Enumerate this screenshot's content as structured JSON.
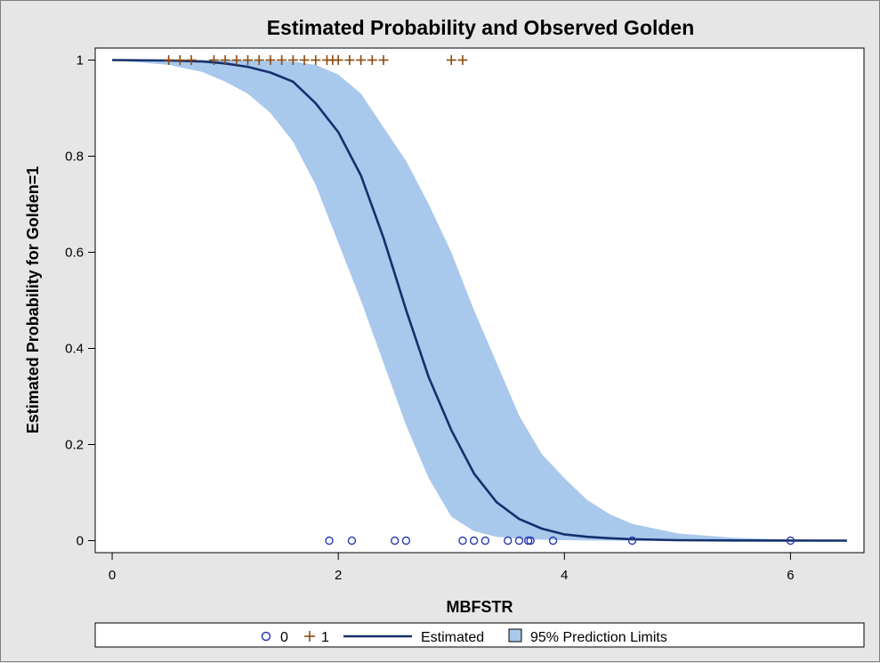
{
  "chart_data": {
    "type": "line",
    "title": "Estimated Probability and Observed Golden",
    "xlabel": "MBFSTR",
    "ylabel": "Estimated Probability for Golden=1",
    "xlim": [
      -0.15,
      6.65
    ],
    "ylim": [
      -0.025,
      1.025
    ],
    "x_ticks": [
      0,
      2,
      4,
      6
    ],
    "x_tick_labels": [
      "0",
      "2",
      "4",
      "6"
    ],
    "y_ticks": [
      0,
      0.2,
      0.4,
      0.6,
      0.8,
      1
    ],
    "y_tick_labels": [
      "0",
      "0.2",
      "0.4",
      "0.6",
      "0.8",
      "1"
    ],
    "grid": false,
    "legend_position": "bottom",
    "series": [
      {
        "name": "Estimated",
        "kind": "line",
        "color": "#14306e",
        "x": [
          0.0,
          0.5,
          0.8,
          1.0,
          1.2,
          1.4,
          1.6,
          1.8,
          2.0,
          2.2,
          2.4,
          2.6,
          2.8,
          3.0,
          3.2,
          3.4,
          3.6,
          3.8,
          4.0,
          4.2,
          4.4,
          4.6,
          5.0,
          5.5,
          6.0,
          6.5
        ],
        "y": [
          1.0,
          0.999,
          0.997,
          0.993,
          0.986,
          0.974,
          0.955,
          0.91,
          0.85,
          0.76,
          0.63,
          0.48,
          0.34,
          0.23,
          0.14,
          0.08,
          0.045,
          0.025,
          0.013,
          0.008,
          0.005,
          0.003,
          0.001,
          0.0003,
          0.0001,
          0.0
        ]
      },
      {
        "name": "95% Prediction Limits",
        "kind": "band",
        "color": "#a8c8ec",
        "x": [
          0.0,
          0.5,
          0.8,
          1.0,
          1.2,
          1.4,
          1.6,
          1.8,
          2.0,
          2.2,
          2.4,
          2.6,
          2.8,
          3.0,
          3.2,
          3.4,
          3.6,
          3.8,
          4.0,
          4.2,
          4.4,
          4.6,
          5.0,
          5.5,
          6.0,
          6.5
        ],
        "lower": [
          1.0,
          0.99,
          0.975,
          0.955,
          0.93,
          0.89,
          0.83,
          0.74,
          0.62,
          0.5,
          0.37,
          0.24,
          0.13,
          0.05,
          0.02,
          0.008,
          0.004,
          0.002,
          0.001,
          0.0005,
          0.0002,
          0.0001,
          0.0,
          0.0,
          0.0,
          0.0
        ],
        "upper": [
          1.0,
          1.0,
          1.0,
          1.0,
          0.999,
          0.998,
          0.997,
          0.99,
          0.97,
          0.93,
          0.86,
          0.79,
          0.7,
          0.6,
          0.48,
          0.37,
          0.26,
          0.18,
          0.13,
          0.085,
          0.055,
          0.035,
          0.015,
          0.006,
          0.002,
          0.0008
        ]
      },
      {
        "name": "0",
        "kind": "scatter",
        "marker": "circle",
        "color": "#2b3bb0",
        "x": [
          1.92,
          2.12,
          2.5,
          2.6,
          3.1,
          3.2,
          3.3,
          3.5,
          3.6,
          3.68,
          3.7,
          3.9,
          4.6,
          6.0
        ],
        "y": [
          0,
          0,
          0,
          0,
          0,
          0,
          0,
          0,
          0,
          0,
          0,
          0,
          0,
          0
        ]
      },
      {
        "name": "1",
        "kind": "scatter",
        "marker": "plus",
        "color": "#8b4a0e",
        "x": [
          0.5,
          0.6,
          0.7,
          0.9,
          1.0,
          1.1,
          1.2,
          1.3,
          1.4,
          1.5,
          1.6,
          1.7,
          1.8,
          1.9,
          1.95,
          2.0,
          2.1,
          2.2,
          2.3,
          2.4,
          3.0,
          3.1
        ],
        "y": [
          1,
          1,
          1,
          1,
          1,
          1,
          1,
          1,
          1,
          1,
          1,
          1,
          1,
          1,
          1,
          1,
          1,
          1,
          1,
          1,
          1,
          1
        ]
      }
    ],
    "legend": [
      {
        "label": "0",
        "symbol": "circle"
      },
      {
        "label": "1",
        "symbol": "plus"
      },
      {
        "label": "Estimated",
        "symbol": "line"
      },
      {
        "label": "95% Prediction Limits",
        "symbol": "box"
      }
    ]
  }
}
